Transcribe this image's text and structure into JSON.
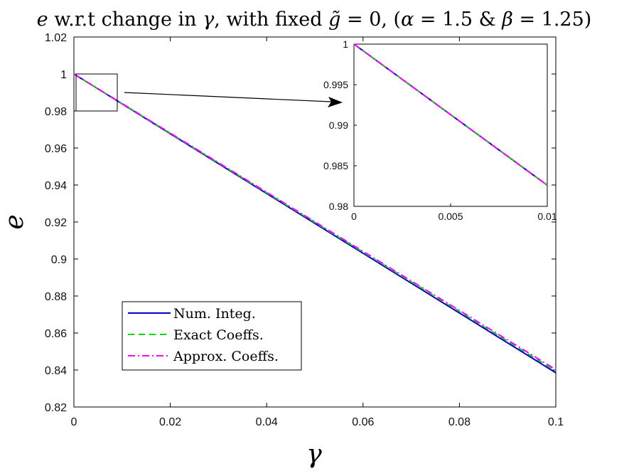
{
  "chart_data": {
    "type": "line",
    "title": "e w.r.t change in γ, with fixed g̃ = 0, (α = 1.5 & β = 1.25)",
    "xlabel": "γ",
    "ylabel": "e",
    "xlim": [
      0,
      0.1
    ],
    "ylim": [
      0.82,
      1.02
    ],
    "x_ticks": [
      "0",
      "0.02",
      "0.04",
      "0.06",
      "0.08",
      "0.1"
    ],
    "y_ticks": [
      "0.82",
      "0.84",
      "0.86",
      "0.88",
      "0.9",
      "0.92",
      "0.94",
      "0.96",
      "0.98",
      "1",
      "1.02"
    ],
    "grid": false,
    "legend_position": "lower-left",
    "series": [
      {
        "name": "Num. Integ.",
        "color": "#0000cc",
        "style": "solid",
        "x": [
          0,
          0.1
        ],
        "y": [
          1.0,
          0.8385
        ]
      },
      {
        "name": "Exact Coeffs.",
        "color": "#00dd00",
        "style": "dashed",
        "x": [
          0,
          0.1
        ],
        "y": [
          1.0,
          0.8395
        ]
      },
      {
        "name": "Approx. Coeffs.",
        "color": "#ff00ff",
        "style": "dashdot",
        "x": [
          0,
          0.1
        ],
        "y": [
          1.0,
          0.8402
        ]
      }
    ],
    "inset": {
      "xlim": [
        0,
        0.01
      ],
      "ylim": [
        0.98,
        1.0
      ],
      "x_ticks": [
        "0",
        "0.005",
        "0.01"
      ],
      "y_ticks": [
        "0.98",
        "0.985",
        "0.99",
        "0.995",
        "1"
      ],
      "series_end_y": [
        0.9826,
        0.9826,
        0.9826
      ]
    }
  }
}
